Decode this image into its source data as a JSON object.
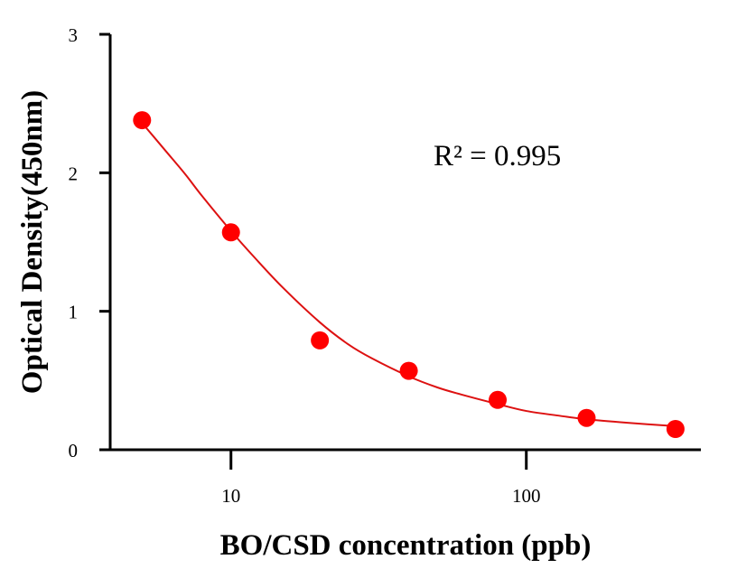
{
  "chart_data": {
    "type": "scatter",
    "title": "",
    "xlabel": "BO/CSD concentration (ppb)",
    "ylabel": "Optical Density(450nm)",
    "x_scale": "log",
    "xlim": [
      3.9,
      390
    ],
    "ylim": [
      0,
      3
    ],
    "x_ticks": [
      {
        "value": 10,
        "label": "10"
      },
      {
        "value": 100,
        "label": "100"
      }
    ],
    "y_ticks": [
      {
        "value": 0,
        "label": "0"
      },
      {
        "value": 1,
        "label": "1"
      },
      {
        "value": 2,
        "label": "2"
      },
      {
        "value": 3,
        "label": "3"
      }
    ],
    "grid": false,
    "series": [
      {
        "points": [
          {
            "x": 5,
            "y": 2.38
          },
          {
            "x": 10,
            "y": 1.57
          },
          {
            "x": 20,
            "y": 0.79
          },
          {
            "x": 40,
            "y": 0.57
          },
          {
            "x": 80,
            "y": 0.36
          },
          {
            "x": 160,
            "y": 0.23
          },
          {
            "x": 320,
            "y": 0.15
          }
        ],
        "color": "#ff0000",
        "fit_color": "#dd1111",
        "fit_curve": [
          {
            "x": 5,
            "y": 2.36
          },
          {
            "x": 6,
            "y": 2.16
          },
          {
            "x": 7,
            "y": 1.99
          },
          {
            "x": 8,
            "y": 1.83
          },
          {
            "x": 10,
            "y": 1.58
          },
          {
            "x": 12,
            "y": 1.39
          },
          {
            "x": 15,
            "y": 1.17
          },
          {
            "x": 20,
            "y": 0.92
          },
          {
            "x": 25,
            "y": 0.76
          },
          {
            "x": 30,
            "y": 0.66
          },
          {
            "x": 40,
            "y": 0.53
          },
          {
            "x": 50,
            "y": 0.45
          },
          {
            "x": 60,
            "y": 0.4
          },
          {
            "x": 80,
            "y": 0.33
          },
          {
            "x": 100,
            "y": 0.28
          },
          {
            "x": 130,
            "y": 0.245
          },
          {
            "x": 160,
            "y": 0.22
          },
          {
            "x": 220,
            "y": 0.195
          },
          {
            "x": 320,
            "y": 0.17
          }
        ]
      }
    ],
    "annotation": "R² = 0.995"
  }
}
